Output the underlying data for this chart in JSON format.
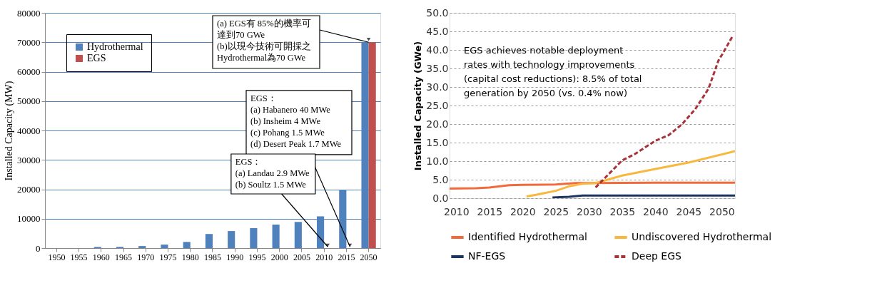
{
  "chart_data": [
    {
      "type": "bar",
      "ylabel": "Installed Capacity (MW)",
      "categories": [
        "1950",
        "1955",
        "1960",
        "1965",
        "1970",
        "1975",
        "1980",
        "1985",
        "1990",
        "1995",
        "2000",
        "2005",
        "2010",
        "2015",
        "2050"
      ],
      "series": [
        {
          "name": "Hydrothermal",
          "color": "#4f81bd",
          "values": [
            null,
            null,
            400,
            400,
            700,
            1200,
            2100,
            4800,
            5800,
            6800,
            8000,
            8900,
            10800,
            19700,
            70000
          ]
        },
        {
          "name": "EGS",
          "color": "#c0504d",
          "values": [
            0,
            0,
            0,
            0,
            0,
            0,
            0,
            0,
            0,
            0,
            0,
            0,
            0,
            0,
            70000
          ]
        }
      ],
      "ylim": [
        0,
        80000
      ],
      "yticks": [
        0,
        10000,
        20000,
        30000,
        40000,
        50000,
        60000,
        70000,
        80000
      ],
      "grid": "y",
      "legend": "top left",
      "annotations": [
        {
          "text": "(a) EGS有 85%的機率可達到70 GWe\n(b)以現今技術可開採之Hydrothermal為70 GWe",
          "x": "2050",
          "y": 70000
        },
        {
          "text": "EGS：\n(a) Habanero 40 MWe\n(b) Insheim 4 MWe\n(c) Pohang 1.5 MWe\n(d) Desert Peak 1.7 MWe",
          "x": "2015",
          "y": 0
        },
        {
          "text": "EGS：\n(a) Landau 2.9 MWe\n(b) Soultz 1.5 MWe",
          "x": "2010",
          "y": 0
        }
      ]
    },
    {
      "type": "line",
      "ylabel": "Installed Capacity (GWe)",
      "xlim": [
        2009,
        2052
      ],
      "xticks": [
        2010,
        2015,
        2020,
        2025,
        2030,
        2035,
        2040,
        2045,
        2050
      ],
      "ylim": [
        0,
        50
      ],
      "yticks": [
        {
          "value": 0,
          "label": "0.0"
        },
        {
          "value": 5,
          "label": "5.0"
        },
        {
          "value": 10,
          "label": "10.0"
        },
        {
          "value": 15,
          "label": "15.0"
        },
        {
          "value": 20,
          "label": "20.0"
        },
        {
          "value": 25,
          "label": "25.0"
        },
        {
          "value": 30,
          "label": "30.0"
        },
        {
          "value": 35,
          "label": "35.0"
        },
        {
          "value": 40,
          "label": "40.0"
        },
        {
          "value": 45,
          "label": "45.0"
        },
        {
          "value": 50,
          "label": "50.0"
        }
      ],
      "grid": "y",
      "legend": "bottom",
      "series": [
        {
          "name": "Identified Hydrothermal",
          "color": "#f26a3b",
          "line_style": "solid",
          "x": [
            2009,
            2013,
            2015,
            2018,
            2020,
            2025,
            2028,
            2030,
            2040,
            2052
          ],
          "values": [
            2.6,
            2.7,
            2.9,
            3.5,
            3.6,
            3.7,
            4.1,
            4.1,
            4.2,
            4.2
          ]
        },
        {
          "name": "Undiscovered Hydrothermal",
          "color": "#f8b83f",
          "line_style": "solid",
          "x": [
            2020.6,
            2022,
            2025,
            2027,
            2029,
            2031,
            2035,
            2040,
            2045,
            2052
          ],
          "values": [
            0.5,
            0.9,
            2.0,
            3.2,
            3.9,
            4.1,
            6.1,
            7.9,
            9.6,
            12.7
          ]
        },
        {
          "name": "NF-EGS",
          "color": "#1b365d",
          "line_style": "solid",
          "x": [
            2024.5,
            2027,
            2029,
            2052
          ],
          "values": [
            0.2,
            0.4,
            0.7,
            0.7
          ]
        },
        {
          "name": "Deep EGS",
          "color": "#a8323a",
          "line_style": "dashed",
          "x": [
            2031,
            2035,
            2037,
            2040,
            2042,
            2044,
            2046,
            2048,
            2049.5,
            2050.3,
            2051.6
          ],
          "values": [
            2.9,
            10.2,
            12.0,
            15.5,
            17.0,
            19.9,
            24.0,
            29.5,
            37.1,
            39.5,
            43.6
          ]
        }
      ],
      "annotations": [
        "EGS achieves notable deployment\nrates with technology improvements\n(capital cost reductions): 8.5% of total\ngeneration by 2050 (vs. 0.4% now)"
      ]
    }
  ]
}
